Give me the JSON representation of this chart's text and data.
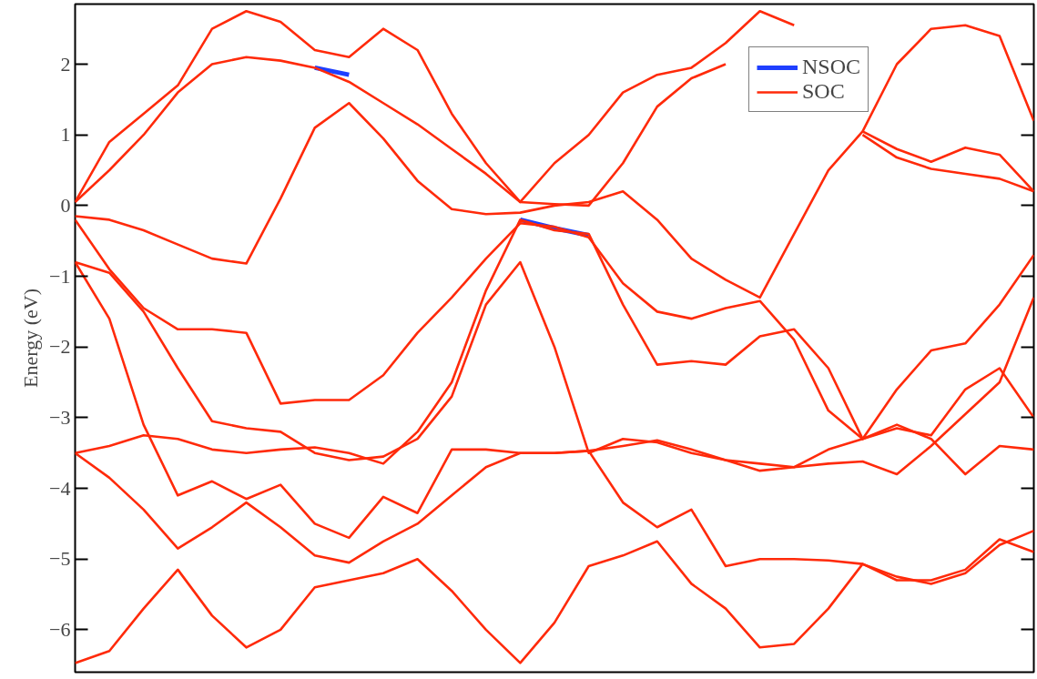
{
  "chart_data": {
    "type": "line",
    "ylabel": "Energy (eV)",
    "ylim": [
      -6.6,
      2.85
    ],
    "yticks": [
      -6,
      -5,
      -4,
      -3,
      -2,
      -1,
      0,
      1,
      2
    ],
    "grid": false,
    "legend": "top right",
    "marker": "none",
    "line_style": "solid",
    "categories": [
      null,
      null,
      null,
      null,
      null,
      null,
      null,
      null,
      null,
      null,
      null,
      null,
      null,
      null,
      null,
      null,
      null,
      null,
      null,
      null,
      null,
      null,
      null,
      null,
      null,
      null,
      null,
      null,
      null
    ],
    "series": [
      {
        "name": "NSOC",
        "color": "#1f3fff",
        "values": [
          null,
          null,
          null,
          null,
          null,
          null,
          null,
          1.95,
          1.85,
          null,
          null,
          null,
          null,
          -0.2,
          -0.32,
          -0.42,
          null,
          null,
          null,
          null,
          null,
          null,
          null,
          null,
          null,
          null,
          null,
          null,
          null
        ]
      },
      {
        "name": "SOC",
        "color": "#ff2a0a",
        "values": [
          0.05,
          0.9,
          1.3,
          1.7,
          2.5,
          2.75,
          2.6,
          2.2,
          2.1,
          2.5,
          2.2,
          1.3,
          0.6,
          0.05,
          0.6,
          1.0,
          1.6,
          1.85,
          1.95,
          2.3,
          2.75,
          2.55,
          null,
          1.05,
          0.8,
          0.62,
          0.82,
          0.72,
          0.2
        ]
      },
      {
        "color": "#ff2a0a",
        "values": [
          0.05,
          0.5,
          1.0,
          1.6,
          2.0,
          2.1,
          2.05,
          1.95,
          1.75,
          1.45,
          1.15,
          0.8,
          0.45,
          0.05,
          0.02,
          0.0,
          0.6,
          1.4,
          1.8,
          2.0,
          null,
          null,
          null,
          1.0,
          0.68,
          0.52,
          0.45,
          0.38,
          0.2
        ]
      },
      {
        "color": "#ff2a0a",
        "values": [
          -0.15,
          -0.2,
          -0.35,
          -0.55,
          -0.75,
          -0.82,
          0.1,
          1.1,
          1.45,
          0.95,
          0.35,
          -0.05,
          -0.12,
          -0.1,
          0.0,
          0.05,
          0.2,
          -0.2,
          -0.75,
          -1.05,
          -1.3,
          -0.4,
          0.5,
          1.05,
          2.0,
          2.5,
          2.55,
          2.4,
          1.2
        ]
      },
      {
        "color": "#ff2a0a",
        "values": [
          -0.2,
          -0.9,
          -1.45,
          -1.75,
          -1.75,
          -1.8,
          -2.8,
          -2.75,
          -2.75,
          -2.4,
          -1.8,
          -1.3,
          -0.75,
          -0.25,
          -0.3,
          -0.45,
          -1.1,
          -1.5,
          -1.6,
          -1.45,
          -1.35,
          -1.9,
          -2.9,
          -3.3,
          -2.6,
          -2.05,
          -1.95,
          -1.4,
          -0.7
        ]
      },
      {
        "color": "#ff2a0a",
        "values": [
          -0.8,
          -0.95,
          -1.5,
          -2.3,
          -3.05,
          -3.15,
          -3.2,
          -3.5,
          -3.6,
          -3.55,
          -3.3,
          -2.7,
          -1.4,
          -0.8,
          -2.0,
          -3.5,
          -3.3,
          -3.35,
          -3.5,
          -3.6,
          -3.75,
          -3.7,
          -3.45,
          -3.3,
          -3.15,
          -3.25,
          -2.6,
          -2.3,
          -3.0
        ]
      },
      {
        "color": "#ff2a0a",
        "values": [
          -0.8,
          -1.6,
          -3.1,
          -4.1,
          -3.9,
          -4.15,
          -3.95,
          -4.5,
          -4.7,
          -4.12,
          -4.35,
          -3.45,
          -3.45,
          -3.5,
          -3.5,
          -3.47,
          -4.2,
          -4.55,
          -4.3,
          -5.1,
          -5.0,
          -5.0,
          -5.02,
          -5.07,
          -5.25,
          -5.35,
          -5.2,
          -4.8,
          -4.6
        ]
      },
      {
        "color": "#ff2a0a",
        "values": [
          -3.5,
          -3.4,
          -3.25,
          -3.3,
          -3.45,
          -3.5,
          -3.45,
          -3.42,
          -3.5,
          -3.65,
          -3.2,
          -2.5,
          -1.2,
          -0.2,
          -0.35,
          -0.4,
          -1.4,
          -2.25,
          -2.2,
          -2.25,
          -1.85,
          -1.75,
          -2.3,
          -3.3,
          -3.1,
          -3.3,
          -3.8,
          -3.4,
          -3.45
        ]
      },
      {
        "color": "#ff2a0a",
        "values": [
          -3.5,
          -3.85,
          -4.3,
          -4.85,
          -4.55,
          -4.2,
          -4.55,
          -4.95,
          -5.05,
          -4.75,
          -4.5,
          -4.1,
          -3.7,
          -3.5,
          -3.5,
          -3.47,
          -3.4,
          -3.32,
          -3.45,
          -3.6,
          -3.65,
          -3.7,
          -3.65,
          -3.62,
          -3.8,
          -3.4,
          -2.95,
          -2.5,
          -1.3
        ]
      },
      {
        "color": "#ff2a0a",
        "values": [
          -6.47,
          -6.3,
          -5.7,
          -5.15,
          -5.8,
          -6.25,
          -6.0,
          -5.4,
          -5.3,
          -5.2,
          -5.0,
          -5.45,
          -6.0,
          -6.47,
          -5.9,
          -5.1,
          -4.95,
          -4.75,
          -5.35,
          -5.7,
          -6.25,
          -6.2,
          -5.7,
          -5.07,
          -5.3,
          -5.3,
          -5.15,
          -4.72,
          -4.9
        ]
      }
    ]
  }
}
